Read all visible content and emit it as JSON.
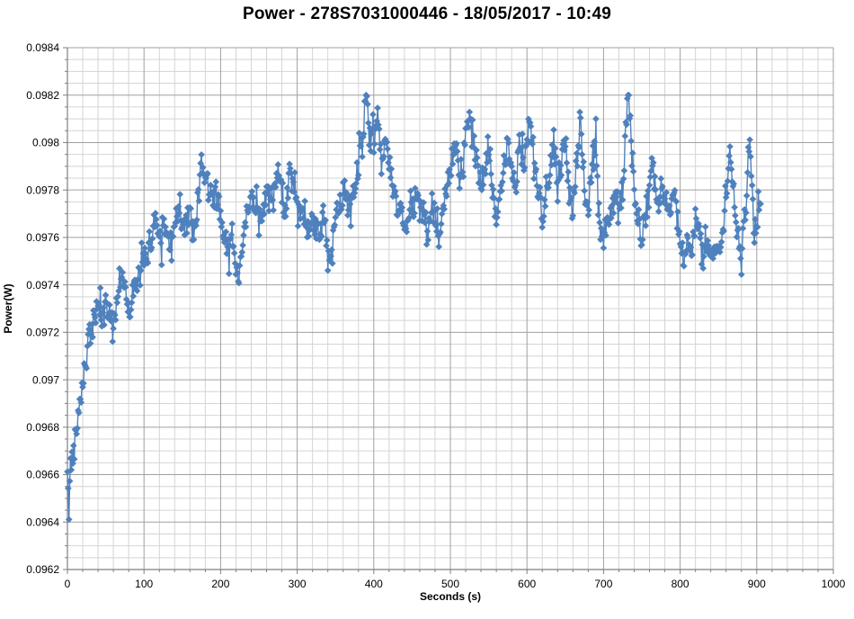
{
  "chart_data": {
    "type": "scatter",
    "title": "Power - 278S7031000446 - 18/05/2017 - 10:49",
    "xlabel": "Seconds (s)",
    "ylabel": "Power(W)",
    "x_range": [
      0,
      1000
    ],
    "y_range": [
      0.0962,
      0.0984
    ],
    "x_ticks": [
      0,
      100,
      200,
      300,
      400,
      500,
      600,
      700,
      800,
      900,
      1000
    ],
    "y_ticks": [
      "0.0984",
      "0.0982",
      "0.098",
      "0.0978",
      "0.0976",
      "0.0974",
      "0.0972",
      "0.097",
      "0.0968",
      "0.0966",
      "0.0964",
      "0.0962"
    ],
    "x_minor_step": 20,
    "y_minor_step": 5e-05,
    "grid": "major-and-minor",
    "legend": "none",
    "colors": {
      "series": "#4F81BD",
      "grid_major": "#a0a0a0",
      "grid_minor": "#d4d4d4",
      "axis": "#7f7f7f",
      "text": "#000000",
      "background": "#ffffff"
    },
    "series": {
      "name": "Power",
      "marker": "diamond",
      "line": "straight",
      "sample_interval_s": 1,
      "t_start": 0,
      "t_end": 905,
      "noise_amplitude": 6e-05,
      "seed": 42,
      "trend": [
        [
          0,
          0.0966
        ],
        [
          1,
          0.0965
        ],
        [
          2,
          0.09645
        ],
        [
          3,
          0.0966
        ],
        [
          5,
          0.09665
        ],
        [
          8,
          0.0967
        ],
        [
          12,
          0.0968
        ],
        [
          15,
          0.0969
        ],
        [
          20,
          0.097
        ],
        [
          25,
          0.0971
        ],
        [
          30,
          0.0972
        ],
        [
          35,
          0.09725
        ],
        [
          40,
          0.0973
        ],
        [
          45,
          0.09725
        ],
        [
          50,
          0.0973
        ],
        [
          55,
          0.0973
        ],
        [
          60,
          0.0972
        ],
        [
          65,
          0.09735
        ],
        [
          70,
          0.09745
        ],
        [
          75,
          0.0974
        ],
        [
          80,
          0.0973
        ],
        [
          85,
          0.09735
        ],
        [
          90,
          0.0974
        ],
        [
          95,
          0.09745
        ],
        [
          100,
          0.0975
        ],
        [
          105,
          0.09755
        ],
        [
          110,
          0.0976
        ],
        [
          115,
          0.0977
        ],
        [
          120,
          0.0976
        ],
        [
          125,
          0.09765
        ],
        [
          130,
          0.0976
        ],
        [
          135,
          0.0976
        ],
        [
          140,
          0.09765
        ],
        [
          145,
          0.0977
        ],
        [
          150,
          0.0976
        ],
        [
          155,
          0.09765
        ],
        [
          160,
          0.0977
        ],
        [
          165,
          0.0976
        ],
        [
          170,
          0.09775
        ],
        [
          175,
          0.0979
        ],
        [
          180,
          0.09785
        ],
        [
          185,
          0.0978
        ],
        [
          190,
          0.09775
        ],
        [
          195,
          0.0978
        ],
        [
          200,
          0.0977
        ],
        [
          205,
          0.0976
        ],
        [
          210,
          0.09755
        ],
        [
          215,
          0.0976
        ],
        [
          220,
          0.0975
        ],
        [
          225,
          0.09745
        ],
        [
          230,
          0.0976
        ],
        [
          235,
          0.0977
        ],
        [
          240,
          0.09775
        ],
        [
          245,
          0.0977
        ],
        [
          250,
          0.09765
        ],
        [
          255,
          0.0977
        ],
        [
          260,
          0.0978
        ],
        [
          265,
          0.09775
        ],
        [
          270,
          0.0978
        ],
        [
          275,
          0.09785
        ],
        [
          280,
          0.0978
        ],
        [
          285,
          0.0977
        ],
        [
          290,
          0.0979
        ],
        [
          295,
          0.0978
        ],
        [
          300,
          0.0977
        ],
        [
          305,
          0.09765
        ],
        [
          310,
          0.0977
        ],
        [
          315,
          0.0976
        ],
        [
          320,
          0.0977
        ],
        [
          325,
          0.09765
        ],
        [
          330,
          0.0976
        ],
        [
          335,
          0.0977
        ],
        [
          340,
          0.0975
        ],
        [
          345,
          0.0975
        ],
        [
          350,
          0.0977
        ],
        [
          355,
          0.0977
        ],
        [
          360,
          0.0978
        ],
        [
          365,
          0.09775
        ],
        [
          370,
          0.0977
        ],
        [
          375,
          0.0978
        ],
        [
          380,
          0.0979
        ],
        [
          385,
          0.098
        ],
        [
          390,
          0.0982
        ],
        [
          395,
          0.098
        ],
        [
          400,
          0.098
        ],
        [
          405,
          0.0981
        ],
        [
          410,
          0.0979
        ],
        [
          415,
          0.098
        ],
        [
          420,
          0.0979
        ],
        [
          425,
          0.0978
        ],
        [
          430,
          0.0977
        ],
        [
          435,
          0.0978
        ],
        [
          440,
          0.0976
        ],
        [
          445,
          0.0977
        ],
        [
          450,
          0.0977
        ],
        [
          455,
          0.0978
        ],
        [
          460,
          0.0977
        ],
        [
          465,
          0.0977
        ],
        [
          470,
          0.0976
        ],
        [
          475,
          0.0977
        ],
        [
          480,
          0.0977
        ],
        [
          485,
          0.0976
        ],
        [
          490,
          0.0977
        ],
        [
          495,
          0.0978
        ],
        [
          500,
          0.0979
        ],
        [
          505,
          0.098
        ],
        [
          510,
          0.0979
        ],
        [
          515,
          0.0978
        ],
        [
          520,
          0.098
        ],
        [
          525,
          0.0981
        ],
        [
          530,
          0.098
        ],
        [
          535,
          0.0979
        ],
        [
          540,
          0.0978
        ],
        [
          545,
          0.0979
        ],
        [
          550,
          0.098
        ],
        [
          555,
          0.0978
        ],
        [
          560,
          0.0977
        ],
        [
          565,
          0.0978
        ],
        [
          570,
          0.0979
        ],
        [
          575,
          0.098
        ],
        [
          580,
          0.0979
        ],
        [
          585,
          0.0978
        ],
        [
          590,
          0.098
        ],
        [
          595,
          0.0979
        ],
        [
          600,
          0.098
        ],
        [
          605,
          0.0981
        ],
        [
          610,
          0.0979
        ],
        [
          615,
          0.0978
        ],
        [
          620,
          0.0977
        ],
        [
          625,
          0.0978
        ],
        [
          630,
          0.0979
        ],
        [
          635,
          0.098
        ],
        [
          640,
          0.0978
        ],
        [
          645,
          0.0979
        ],
        [
          650,
          0.098
        ],
        [
          655,
          0.0978
        ],
        [
          660,
          0.0977
        ],
        [
          665,
          0.0979
        ],
        [
          670,
          0.0981
        ],
        [
          675,
          0.0978
        ],
        [
          680,
          0.0977
        ],
        [
          685,
          0.0979
        ],
        [
          690,
          0.098
        ],
        [
          695,
          0.0977
        ],
        [
          700,
          0.0976
        ],
        [
          705,
          0.0977
        ],
        [
          710,
          0.0977
        ],
        [
          715,
          0.0978
        ],
        [
          720,
          0.0977
        ],
        [
          725,
          0.0978
        ],
        [
          730,
          0.0981
        ],
        [
          733,
          0.0982
        ],
        [
          736,
          0.098
        ],
        [
          740,
          0.0978
        ],
        [
          745,
          0.0977
        ],
        [
          750,
          0.0976
        ],
        [
          755,
          0.0977
        ],
        [
          760,
          0.0978
        ],
        [
          765,
          0.0979
        ],
        [
          770,
          0.0977
        ],
        [
          775,
          0.0978
        ],
        [
          780,
          0.0978
        ],
        [
          785,
          0.0977
        ],
        [
          790,
          0.0978
        ],
        [
          795,
          0.0977
        ],
        [
          800,
          0.0976
        ],
        [
          805,
          0.0975
        ],
        [
          810,
          0.0976
        ],
        [
          815,
          0.0975
        ],
        [
          820,
          0.0977
        ],
        [
          825,
          0.0976
        ],
        [
          830,
          0.0975
        ],
        [
          835,
          0.0976
        ],
        [
          840,
          0.0975
        ],
        [
          845,
          0.0976
        ],
        [
          850,
          0.0975
        ],
        [
          855,
          0.0976
        ],
        [
          860,
          0.0978
        ],
        [
          865,
          0.098
        ],
        [
          870,
          0.0978
        ],
        [
          875,
          0.0976
        ],
        [
          880,
          0.0975
        ],
        [
          885,
          0.0977
        ],
        [
          890,
          0.098
        ],
        [
          893,
          0.0979
        ],
        [
          897,
          0.0976
        ],
        [
          901,
          0.0977
        ],
        [
          905,
          0.0978
        ]
      ]
    }
  }
}
